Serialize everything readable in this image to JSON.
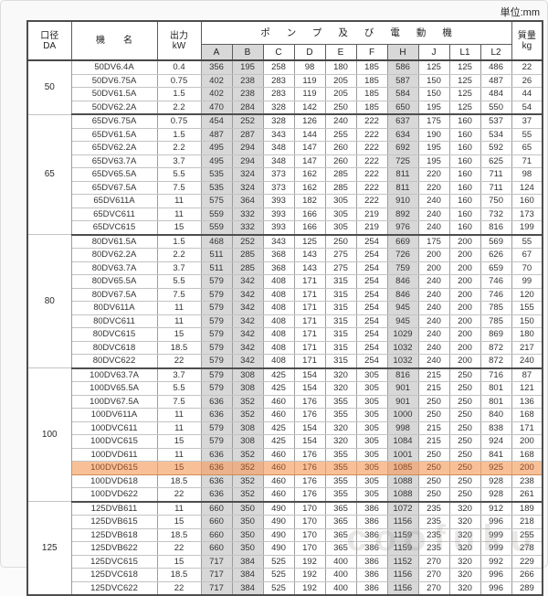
{
  "page": {
    "unit_label": "単位:mm",
    "watermark": "coofuku"
  },
  "table": {
    "headers": {
      "diameter_l1": "口径",
      "diameter_l2": "DA",
      "model": "機　　名",
      "output_l1": "出力",
      "output_l2": "kW",
      "pump_motor": "ポンプ及び電動機",
      "mass_l1": "質量",
      "mass_l2": "kg",
      "dim_columns": [
        "A",
        "B",
        "C",
        "D",
        "E",
        "F",
        "H",
        "J",
        "L1",
        "L2"
      ],
      "shaded_columns": [
        "A",
        "B",
        "H"
      ]
    },
    "highlighted_model": "100DVD615",
    "colors": {
      "column_shade": "#d8d8d8",
      "highlight_bg": "#f8c097",
      "highlight_shade_bg": "#e9b28c",
      "highlight_text": "#8a4a2c"
    },
    "groups": [
      {
        "diameter": "50",
        "rows": [
          {
            "model": "50DV6.4A",
            "output": "0.4",
            "dims": [
              356,
              195,
              258,
              98,
              180,
              185,
              586,
              125,
              125,
              486
            ],
            "mass": "22"
          },
          {
            "model": "50DV6.75A",
            "output": "0.75",
            "dims": [
              402,
              238,
              283,
              119,
              205,
              185,
              587,
              150,
              125,
              487
            ],
            "mass": "26"
          },
          {
            "model": "50DV61.5A",
            "output": "1.5",
            "dims": [
              402,
              238,
              283,
              119,
              205,
              185,
              584,
              150,
              125,
              484
            ],
            "mass": "44"
          },
          {
            "model": "50DV62.2A",
            "output": "2.2",
            "dims": [
              470,
              284,
              328,
              142,
              250,
              185,
              650,
              195,
              125,
              550
            ],
            "mass": "54"
          }
        ]
      },
      {
        "diameter": "65",
        "rows": [
          {
            "model": "65DV6.75A",
            "output": "0.75",
            "dims": [
              454,
              252,
              328,
              126,
              240,
              222,
              637,
              175,
              160,
              537
            ],
            "mass": "37"
          },
          {
            "model": "65DV61.5A",
            "output": "1.5",
            "dims": [
              487,
              287,
              343,
              144,
              255,
              222,
              634,
              190,
              160,
              534
            ],
            "mass": "55"
          },
          {
            "model": "65DV62.2A",
            "output": "2.2",
            "dims": [
              495,
              294,
              348,
              147,
              260,
              222,
              692,
              195,
              160,
              592
            ],
            "mass": "65"
          },
          {
            "model": "65DV63.7A",
            "output": "3.7",
            "dims": [
              495,
              294,
              348,
              147,
              260,
              222,
              725,
              195,
              160,
              625
            ],
            "mass": "71"
          },
          {
            "model": "65DV65.5A",
            "output": "5.5",
            "dims": [
              535,
              324,
              373,
              162,
              285,
              222,
              811,
              220,
              160,
              711
            ],
            "mass": "98"
          },
          {
            "model": "65DV67.5A",
            "output": "7.5",
            "dims": [
              535,
              324,
              373,
              162,
              285,
              222,
              811,
              220,
              160,
              711
            ],
            "mass": "124"
          },
          {
            "model": "65DV611A",
            "output": "11",
            "dims": [
              575,
              364,
              393,
              182,
              305,
              222,
              910,
              240,
              160,
              750
            ],
            "mass": "160"
          },
          {
            "model": "65DVC611",
            "output": "11",
            "dims": [
              559,
              332,
              393,
              166,
              305,
              219,
              892,
              240,
              160,
              732
            ],
            "mass": "173"
          },
          {
            "model": "65DVC615",
            "output": "15",
            "dims": [
              559,
              332,
              393,
              166,
              305,
              219,
              976,
              240,
              160,
              816
            ],
            "mass": "199"
          }
        ]
      },
      {
        "diameter": "80",
        "rows": [
          {
            "model": "80DV61.5A",
            "output": "1.5",
            "dims": [
              468,
              252,
              343,
              125,
              250,
              254,
              669,
              175,
              200,
              569
            ],
            "mass": "55"
          },
          {
            "model": "80DV62.2A",
            "output": "2.2",
            "dims": [
              511,
              285,
              368,
              143,
              275,
              254,
              726,
              200,
              200,
              626
            ],
            "mass": "67"
          },
          {
            "model": "80DV63.7A",
            "output": "3.7",
            "dims": [
              511,
              285,
              368,
              143,
              275,
              254,
              759,
              200,
              200,
              659
            ],
            "mass": "70"
          },
          {
            "model": "80DV65.5A",
            "output": "5.5",
            "dims": [
              579,
              342,
              408,
              171,
              315,
              254,
              846,
              240,
              200,
              746
            ],
            "mass": "99"
          },
          {
            "model": "80DV67.5A",
            "output": "7.5",
            "dims": [
              579,
              342,
              408,
              171,
              315,
              254,
              846,
              240,
              200,
              746
            ],
            "mass": "120"
          },
          {
            "model": "80DV611A",
            "output": "11",
            "dims": [
              579,
              342,
              408,
              171,
              315,
              254,
              945,
              240,
              200,
              785
            ],
            "mass": "155"
          },
          {
            "model": "80DVC611",
            "output": "11",
            "dims": [
              579,
              342,
              408,
              171,
              315,
              254,
              945,
              240,
              200,
              785
            ],
            "mass": "150"
          },
          {
            "model": "80DVC615",
            "output": "15",
            "dims": [
              579,
              342,
              408,
              171,
              315,
              254,
              1029,
              240,
              200,
              869
            ],
            "mass": "180"
          },
          {
            "model": "80DVC618",
            "output": "18.5",
            "dims": [
              579,
              342,
              408,
              171,
              315,
              254,
              1032,
              240,
              200,
              872
            ],
            "mass": "217"
          },
          {
            "model": "80DVC622",
            "output": "22",
            "dims": [
              579,
              342,
              408,
              171,
              315,
              254,
              1032,
              240,
              200,
              872
            ],
            "mass": "240"
          }
        ]
      },
      {
        "diameter": "100",
        "rows": [
          {
            "model": "100DV63.7A",
            "output": "3.7",
            "dims": [
              579,
              308,
              425,
              154,
              320,
              305,
              816,
              215,
              250,
              716
            ],
            "mass": "87"
          },
          {
            "model": "100DV65.5A",
            "output": "5.5",
            "dims": [
              579,
              308,
              425,
              154,
              320,
              305,
              901,
              215,
              250,
              801
            ],
            "mass": "121"
          },
          {
            "model": "100DV67.5A",
            "output": "7.5",
            "dims": [
              636,
              352,
              460,
              176,
              355,
              305,
              901,
              250,
              250,
              801
            ],
            "mass": "136"
          },
          {
            "model": "100DV611A",
            "output": "11",
            "dims": [
              636,
              352,
              460,
              176,
              355,
              305,
              1000,
              250,
              250,
              840
            ],
            "mass": "168"
          },
          {
            "model": "100DVC611",
            "output": "11",
            "dims": [
              579,
              308,
              425,
              154,
              320,
              305,
              998,
              215,
              250,
              838
            ],
            "mass": "171"
          },
          {
            "model": "100DVC615",
            "output": "15",
            "dims": [
              579,
              308,
              425,
              154,
              320,
              305,
              1084,
              215,
              250,
              924
            ],
            "mass": "200"
          },
          {
            "model": "100DVD611",
            "output": "11",
            "dims": [
              636,
              352,
              460,
              176,
              355,
              305,
              1001,
              250,
              250,
              841
            ],
            "mass": "168"
          },
          {
            "model": "100DVD615",
            "output": "15",
            "dims": [
              636,
              352,
              460,
              176,
              355,
              305,
              1085,
              250,
              250,
              925
            ],
            "mass": "200"
          },
          {
            "model": "100DVD618",
            "output": "18.5",
            "dims": [
              636,
              352,
              460,
              176,
              355,
              305,
              1088,
              250,
              250,
              928
            ],
            "mass": "238"
          },
          {
            "model": "100DVD622",
            "output": "22",
            "dims": [
              636,
              352,
              460,
              176,
              355,
              305,
              1088,
              250,
              250,
              928
            ],
            "mass": "261"
          }
        ]
      },
      {
        "diameter": "125",
        "rows": [
          {
            "model": "125DVB611",
            "output": "11",
            "dims": [
              660,
              350,
              490,
              170,
              365,
              386,
              1072,
              235,
              320,
              912
            ],
            "mass": "189"
          },
          {
            "model": "125DVB615",
            "output": "15",
            "dims": [
              660,
              350,
              490,
              170,
              365,
              386,
              1156,
              235,
              320,
              996
            ],
            "mass": "218"
          },
          {
            "model": "125DVB618",
            "output": "18.5",
            "dims": [
              660,
              350,
              490,
              170,
              365,
              386,
              1159,
              235,
              320,
              999
            ],
            "mass": "255"
          },
          {
            "model": "125DVB622",
            "output": "22",
            "dims": [
              660,
              350,
              490,
              170,
              365,
              386,
              1159,
              235,
              320,
              999
            ],
            "mass": "278"
          },
          {
            "model": "125DVC615",
            "output": "15",
            "dims": [
              717,
              384,
              525,
              192,
              400,
              386,
              1152,
              270,
              320,
              992
            ],
            "mass": "229"
          },
          {
            "model": "125DVC618",
            "output": "18.5",
            "dims": [
              717,
              384,
              525,
              192,
              400,
              386,
              1156,
              270,
              320,
              996
            ],
            "mass": "266"
          },
          {
            "model": "125DVC622",
            "output": "22",
            "dims": [
              717,
              384,
              525,
              192,
              400,
              386,
              1156,
              270,
              320,
              996
            ],
            "mass": "289"
          }
        ]
      }
    ]
  }
}
